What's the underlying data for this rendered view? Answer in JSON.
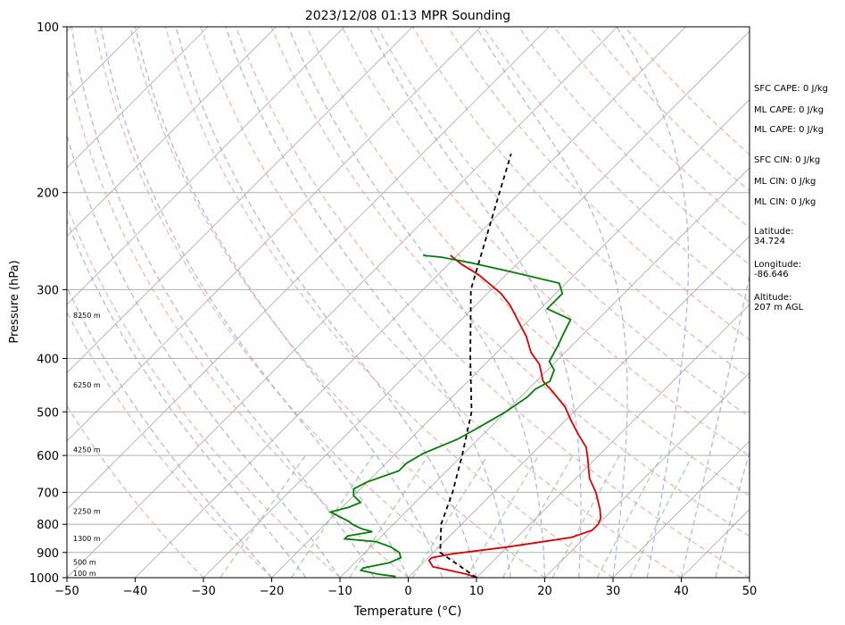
{
  "chart_data": {
    "type": "line",
    "title": "2023/12/08 01:13 MPR Sounding",
    "xlabel": "Temperature (°C)",
    "ylabel": "Pressure (hPa)",
    "xlim": [
      -50,
      50
    ],
    "ylim": [
      1000,
      100
    ],
    "y_scale": "log",
    "grid": true,
    "x_ticks": [
      "−50",
      "−40",
      "−30",
      "−20",
      "−10",
      "0",
      "10",
      "20",
      "30",
      "40",
      "50"
    ],
    "x_tick_values": [
      -50,
      -40,
      -30,
      -20,
      -10,
      0,
      10,
      20,
      30,
      40,
      50
    ],
    "y_ticks": [
      "100",
      "200",
      "300",
      "400",
      "500",
      "600",
      "700",
      "800",
      "900",
      "1000"
    ],
    "y_tick_values": [
      100,
      200,
      300,
      400,
      500,
      600,
      700,
      800,
      900,
      1000
    ],
    "series": [
      {
        "color": "#e00000",
        "points": [
          [
            10,
            1000
          ],
          [
            8,
            985
          ],
          [
            2,
            955
          ],
          [
            0.5,
            930
          ],
          [
            0.5,
            920
          ],
          [
            3,
            905
          ],
          [
            10,
            880
          ],
          [
            18,
            845
          ],
          [
            20,
            820
          ],
          [
            20,
            800
          ],
          [
            19.5,
            780
          ],
          [
            18,
            750
          ],
          [
            15,
            700
          ],
          [
            12,
            660
          ],
          [
            9,
            610
          ],
          [
            7,
            580
          ],
          [
            4,
            550
          ],
          [
            1,
            520
          ],
          [
            -2,
            490
          ],
          [
            -6,
            460
          ],
          [
            -9,
            440
          ],
          [
            -12,
            410
          ],
          [
            -15,
            390
          ],
          [
            -18,
            365
          ],
          [
            -21,
            345
          ],
          [
            -25,
            320
          ],
          [
            -28,
            305
          ],
          [
            -34,
            282
          ],
          [
            -38,
            270
          ],
          [
            -41,
            260
          ]
        ]
      },
      {
        "color": "#008000",
        "points": [
          [
            -2,
            995
          ],
          [
            -5,
            985
          ],
          [
            -8,
            970
          ],
          [
            -8,
            960
          ],
          [
            -5,
            940
          ],
          [
            -4,
            920
          ],
          [
            -5,
            900
          ],
          [
            -7,
            880
          ],
          [
            -10,
            860
          ],
          [
            -15,
            850
          ],
          [
            -15,
            840
          ],
          [
            -12,
            825
          ],
          [
            -14,
            815
          ],
          [
            -16,
            800
          ],
          [
            -17,
            790
          ],
          [
            -21,
            760
          ],
          [
            -19,
            745
          ],
          [
            -18,
            730
          ],
          [
            -20,
            710
          ],
          [
            -21,
            690
          ],
          [
            -20,
            670
          ],
          [
            -17,
            640
          ],
          [
            -17,
            620
          ],
          [
            -16,
            595
          ],
          [
            -13,
            560
          ],
          [
            -12,
            540
          ],
          [
            -11,
            520
          ],
          [
            -10,
            500
          ],
          [
            -9,
            470
          ],
          [
            -9,
            455
          ],
          [
            -8,
            440
          ],
          [
            -9,
            420
          ],
          [
            -11,
            405
          ],
          [
            -12,
            380
          ],
          [
            -13,
            360
          ],
          [
            -14,
            340
          ],
          [
            -19,
            325
          ],
          [
            -19,
            305
          ],
          [
            -21,
            292
          ],
          [
            -30,
            278
          ],
          [
            -37,
            268
          ],
          [
            -42,
            262
          ],
          [
            -45,
            260
          ]
        ]
      },
      {
        "color": "#000000",
        "dashed": true,
        "points": [
          [
            10,
            1000
          ],
          [
            1,
            900
          ],
          [
            -3,
            800
          ],
          [
            -6,
            700
          ],
          [
            -10,
            600
          ],
          [
            -15,
            500
          ],
          [
            -23,
            400
          ],
          [
            -33,
            300
          ],
          [
            -43,
            200
          ],
          [
            -47,
            170
          ]
        ]
      }
    ],
    "dry_adiabats_theta_c": [
      -30,
      -20,
      -10,
      0,
      10,
      20,
      30,
      40,
      50,
      60,
      70,
      80,
      90,
      100,
      110,
      120,
      130,
      140,
      150,
      160
    ],
    "moist_adiabats_start_c": [
      -20,
      -15,
      -10,
      -5,
      0,
      5,
      10,
      15,
      20,
      25,
      30,
      35,
      40,
      45
    ],
    "mixing_ratio_g_kg": [
      0.4,
      1,
      2,
      4,
      7,
      10,
      16,
      24,
      32
    ],
    "height_labels": [
      {
        "label": "100 m",
        "p": 1000
      },
      {
        "label": "500 m",
        "p": 955
      },
      {
        "label": "1300 m",
        "p": 865
      },
      {
        "label": "2250 m",
        "p": 772
      },
      {
        "label": "4250 m",
        "p": 596
      },
      {
        "label": "6250 m",
        "p": 455
      },
      {
        "label": "8250 m",
        "p": 340
      }
    ],
    "indices": [
      {
        "text": "SFC CAPE: 0 J/kg",
        "dy": 0
      },
      {
        "text": "ML CAPE: 0 J/kg",
        "dy": 24
      },
      {
        "text": "ML CAPE: 0 J/kg",
        "dy": 46
      },
      {
        "text": "SFC CIN: 0 J/kg",
        "dy": 80
      },
      {
        "text": "ML CIN: 0 J/kg",
        "dy": 104
      },
      {
        "text": "ML CIN: 0 J/kg",
        "dy": 127
      }
    ],
    "location": [
      {
        "label": "Latitude:",
        "value": "34.724"
      },
      {
        "label": "Longitude:",
        "value": "-86.646"
      },
      {
        "label": "Altitude:",
        "value": "207 m AGL"
      }
    ]
  }
}
